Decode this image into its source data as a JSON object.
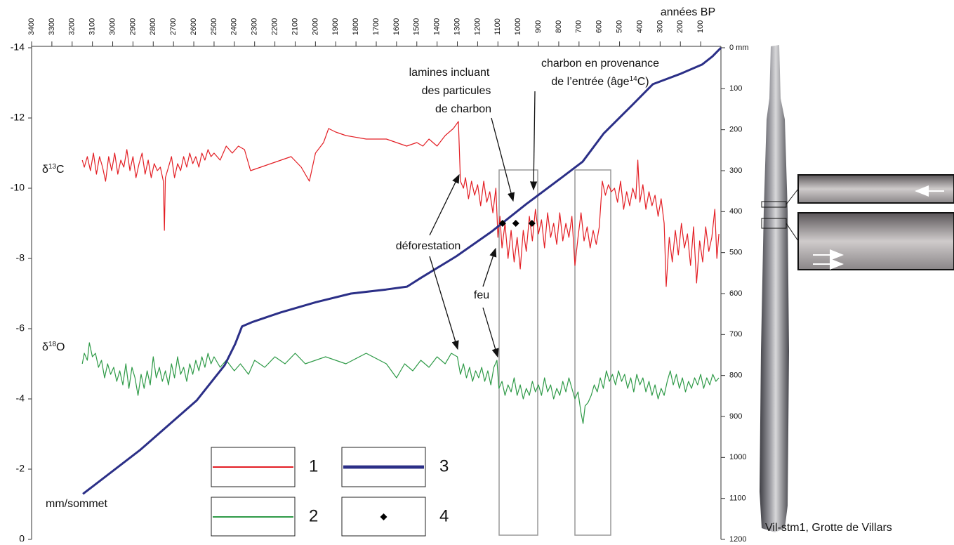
{
  "chart_data": {
    "type": "line",
    "x_label": "années BP",
    "y2_label": "mm/sommet",
    "xlim": [
      3400,
      0
    ],
    "xticks": [
      3400,
      3300,
      3200,
      3100,
      3000,
      2900,
      2800,
      2700,
      2600,
      2500,
      2400,
      2300,
      2200,
      2100,
      2000,
      1900,
      1800,
      1700,
      1600,
      1500,
      1400,
      1300,
      1200,
      1100,
      1000,
      900,
      800,
      700,
      600,
      500,
      400,
      300,
      200,
      100
    ],
    "ylim": [
      -14,
      0
    ],
    "yticks": [
      -14,
      -12,
      -10,
      -8,
      -6,
      -4,
      -2,
      0
    ],
    "y2lim": [
      0,
      1200
    ],
    "y2ticks": [
      {
        "value": 0,
        "label": "0 mm"
      },
      100,
      200,
      300,
      400,
      500,
      600,
      700,
      800,
      900,
      1000,
      1100,
      1200
    ],
    "series": [
      {
        "name": "1",
        "color": "#e31e24",
        "style": "line",
        "width": 1.2,
        "x": [
          3150,
          3140,
          3125,
          3110,
          3095,
          3080,
          3065,
          3050,
          3035,
          3020,
          3005,
          2990,
          2975,
          2960,
          2945,
          2930,
          2915,
          2900,
          2885,
          2870,
          2855,
          2840,
          2825,
          2810,
          2795,
          2780,
          2765,
          2750,
          2745,
          2740,
          2725,
          2710,
          2695,
          2680,
          2665,
          2650,
          2635,
          2620,
          2605,
          2590,
          2575,
          2560,
          2545,
          2530,
          2515,
          2500,
          2470,
          2440,
          2410,
          2380,
          2350,
          2320,
          2270,
          2220,
          2170,
          2120,
          2070,
          2030,
          2000,
          1960,
          1935,
          1900,
          1850,
          1750,
          1650,
          1550,
          1500,
          1470,
          1440,
          1400,
          1360,
          1320,
          1295,
          1285,
          1270,
          1260,
          1245,
          1230,
          1215,
          1200,
          1185,
          1170,
          1155,
          1140,
          1125,
          1110,
          1100,
          1090,
          1080,
          1065,
          1050,
          1035,
          1020,
          1005,
          990,
          975,
          960,
          945,
          930,
          915,
          900,
          885,
          870,
          855,
          840,
          825,
          810,
          795,
          780,
          765,
          750,
          735,
          720,
          705,
          690,
          675,
          660,
          645,
          630,
          615,
          600,
          585,
          570,
          555,
          540,
          525,
          510,
          495,
          480,
          465,
          450,
          435,
          420,
          410,
          400,
          385,
          370,
          355,
          340,
          325,
          310,
          295,
          280,
          270,
          255,
          240,
          225,
          210,
          195,
          180,
          165,
          150,
          135,
          120,
          105,
          90,
          75,
          60,
          45,
          30,
          20,
          10
        ],
        "values": [
          -10.8,
          -10.6,
          -10.9,
          -10.5,
          -11.0,
          -10.4,
          -10.9,
          -10.6,
          -10.2,
          -10.9,
          -10.5,
          -11.0,
          -10.4,
          -10.8,
          -10.6,
          -11.1,
          -10.5,
          -10.9,
          -10.3,
          -10.7,
          -11.0,
          -10.4,
          -10.8,
          -10.3,
          -10.7,
          -10.5,
          -10.6,
          -10.2,
          -8.8,
          -10.3,
          -10.6,
          -10.9,
          -10.3,
          -10.7,
          -10.5,
          -10.9,
          -10.6,
          -11.0,
          -10.7,
          -10.9,
          -10.6,
          -11.0,
          -10.8,
          -11.1,
          -10.9,
          -11.0,
          -10.8,
          -11.2,
          -11.0,
          -11.2,
          -11.1,
          -10.5,
          -10.6,
          -10.7,
          -10.8,
          -10.9,
          -10.6,
          -10.2,
          -11.0,
          -11.3,
          -11.7,
          -11.6,
          -11.5,
          -11.4,
          -11.4,
          -11.2,
          -11.3,
          -11.2,
          -11.4,
          -11.2,
          -11.5,
          -11.7,
          -11.9,
          -10.2,
          -10.0,
          -10.3,
          -9.7,
          -10.2,
          -9.8,
          -10.1,
          -9.5,
          -10.2,
          -9.6,
          -9.9,
          -9.3,
          -10.0,
          -8.6,
          -9.2,
          -8.3,
          -9.0,
          -8.0,
          -8.8,
          -7.9,
          -8.6,
          -7.7,
          -8.8,
          -8.2,
          -9.2,
          -8.5,
          -9.4,
          -8.7,
          -9.1,
          -8.3,
          -9.3,
          -8.6,
          -9.0,
          -8.4,
          -9.3,
          -8.5,
          -9.0,
          -8.6,
          -9.2,
          -7.8,
          -8.6,
          -9.3,
          -8.5,
          -8.9,
          -8.3,
          -8.8,
          -8.4,
          -8.9,
          -10.2,
          -9.8,
          -10.1,
          -9.9,
          -10.0,
          -9.6,
          -10.2,
          -9.4,
          -9.9,
          -9.5,
          -10.0,
          -9.7,
          -10.8,
          -9.6,
          -10.1,
          -9.4,
          -9.9,
          -9.5,
          -9.8,
          -9.2,
          -9.7,
          -9.0,
          -7.2,
          -8.6,
          -7.9,
          -8.8,
          -8.1,
          -9.0,
          -8.3,
          -8.7,
          -7.8,
          -8.9,
          -7.3,
          -8.5,
          -7.9,
          -8.9,
          -8.2,
          -8.6,
          -9.4,
          -8.0,
          -8.7
        ]
      },
      {
        "name": "2",
        "color": "#2e9a47",
        "style": "line",
        "width": 1.2,
        "x": [
          3150,
          3140,
          3125,
          3115,
          3100,
          3085,
          3070,
          3055,
          3040,
          3025,
          3010,
          2995,
          2980,
          2965,
          2950,
          2935,
          2920,
          2905,
          2890,
          2875,
          2860,
          2845,
          2830,
          2815,
          2800,
          2785,
          2770,
          2755,
          2740,
          2725,
          2710,
          2695,
          2680,
          2665,
          2650,
          2635,
          2620,
          2605,
          2590,
          2575,
          2560,
          2545,
          2530,
          2515,
          2500,
          2470,
          2440,
          2400,
          2370,
          2330,
          2300,
          2250,
          2200,
          2150,
          2100,
          2050,
          1950,
          1850,
          1750,
          1650,
          1600,
          1560,
          1520,
          1480,
          1440,
          1400,
          1360,
          1330,
          1300,
          1285,
          1270,
          1255,
          1240,
          1225,
          1210,
          1195,
          1180,
          1165,
          1150,
          1135,
          1120,
          1105,
          1095,
          1080,
          1065,
          1050,
          1035,
          1020,
          1005,
          990,
          975,
          960,
          945,
          930,
          915,
          900,
          885,
          870,
          855,
          840,
          825,
          810,
          795,
          780,
          765,
          750,
          735,
          720,
          705,
          690,
          680,
          670,
          655,
          640,
          625,
          610,
          595,
          580,
          565,
          550,
          535,
          520,
          505,
          490,
          475,
          460,
          445,
          430,
          415,
          400,
          385,
          370,
          355,
          340,
          325,
          310,
          295,
          280,
          265,
          250,
          235,
          220,
          205,
          190,
          175,
          160,
          145,
          130,
          115,
          100,
          85,
          70,
          55,
          40,
          25,
          10
        ],
        "values": [
          -5.0,
          -5.3,
          -5.1,
          -5.6,
          -5.2,
          -5.3,
          -4.9,
          -5.1,
          -4.6,
          -5.0,
          -4.7,
          -4.9,
          -4.5,
          -4.8,
          -4.4,
          -5.0,
          -4.3,
          -4.9,
          -4.6,
          -4.1,
          -4.7,
          -4.3,
          -4.8,
          -4.4,
          -5.2,
          -4.6,
          -4.9,
          -4.5,
          -4.8,
          -4.4,
          -5.0,
          -4.6,
          -5.2,
          -4.7,
          -4.9,
          -4.5,
          -5.0,
          -4.7,
          -5.1,
          -4.8,
          -5.2,
          -4.9,
          -5.3,
          -5.0,
          -5.2,
          -4.9,
          -5.1,
          -4.8,
          -5.0,
          -4.7,
          -5.1,
          -4.9,
          -5.2,
          -5.0,
          -5.3,
          -5.0,
          -5.2,
          -5.0,
          -5.3,
          -5.0,
          -4.6,
          -5.0,
          -4.8,
          -5.1,
          -4.9,
          -5.2,
          -5.0,
          -5.3,
          -5.2,
          -4.7,
          -5.0,
          -4.6,
          -4.9,
          -4.5,
          -4.8,
          -4.6,
          -4.9,
          -4.5,
          -4.8,
          -4.4,
          -4.9,
          -5.1,
          -4.3,
          -4.5,
          -4.1,
          -4.4,
          -4.2,
          -4.6,
          -4.1,
          -4.4,
          -4.0,
          -4.3,
          -4.1,
          -4.5,
          -4.2,
          -4.4,
          -4.1,
          -4.6,
          -4.2,
          -4.4,
          -4.0,
          -4.3,
          -4.1,
          -4.5,
          -4.2,
          -4.6,
          -4.3,
          -4.0,
          -4.2,
          -3.6,
          -3.3,
          -3.8,
          -3.9,
          -4.1,
          -4.4,
          -4.2,
          -4.6,
          -4.3,
          -4.8,
          -4.5,
          -4.7,
          -4.4,
          -4.8,
          -4.5,
          -4.7,
          -4.3,
          -4.6,
          -4.2,
          -4.7,
          -4.4,
          -4.6,
          -4.2,
          -4.5,
          -4.1,
          -4.4,
          -4.0,
          -4.3,
          -4.1,
          -4.5,
          -4.8,
          -4.4,
          -4.7,
          -4.3,
          -4.6,
          -4.2,
          -4.5,
          -4.3,
          -4.6,
          -4.4,
          -4.7,
          -4.3,
          -4.6,
          -4.4,
          -4.7,
          -4.5,
          -4.6
        ]
      },
      {
        "name": "3",
        "color": "#2b2f87",
        "style": "line",
        "width": 3,
        "axis": "y2",
        "x": [
          3147,
          2863,
          2586,
          2448,
          2396,
          2362,
          2309,
          2171,
          1998,
          1825,
          1651,
          1548,
          1478,
          1305,
          1132,
          959,
          786,
          682,
          578,
          440,
          336,
          197,
          93,
          42,
          0
        ],
        "values": [
          1089,
          981,
          861,
          775,
          723,
          680,
          669,
          646,
          621,
          600,
          590,
          583,
          561,
          509,
          449,
          381,
          317,
          278,
          209,
          141,
          89,
          63,
          41,
          21,
          0
        ]
      },
      {
        "name": "4",
        "color": "#000000",
        "style": "markers",
        "x": [
          1077,
          1012,
          932
        ],
        "values": [
          -9.0,
          -9.0,
          -9.0
        ]
      }
    ],
    "annotations": {
      "d13c": {
        "pre": "δ",
        "sup": "13",
        "post": "C"
      },
      "d18o": {
        "pre": "δ",
        "sup": "18",
        "post": "O"
      },
      "laminae": [
        "lamines incluant",
        "des particules",
        "de charbon"
      ],
      "charcoal": {
        "line1": "charbon en provenance",
        "line2": "de l’entrée (âge",
        "sup": "14",
        "post": "C)"
      },
      "deforestation": "déforestation",
      "fire": "feu",
      "sample": "Vil-stm1, Grotte de Villars"
    }
  }
}
